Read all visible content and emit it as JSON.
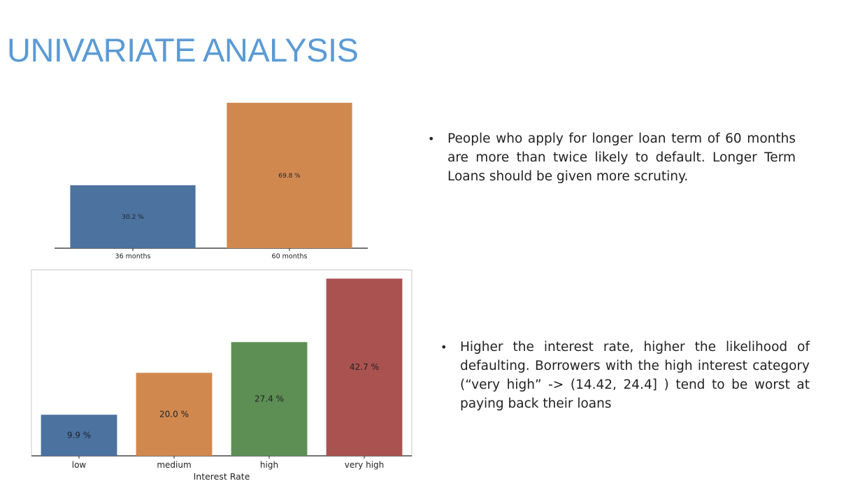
{
  "page_title": "UNIVARIATE ANALYSIS",
  "chart_data": [
    {
      "type": "bar",
      "categories": [
        "36 months",
        "60 months"
      ],
      "values": [
        30.2,
        69.8
      ],
      "data_labels": [
        "30.2 %",
        "69.8 %"
      ],
      "colors": [
        "#4c72a0",
        "#d1884f"
      ],
      "title": "",
      "xlabel": "",
      "ylabel": "",
      "ylim": [
        0,
        69.8
      ],
      "grid": false,
      "axes": "x-axis line only, no frame"
    },
    {
      "type": "bar",
      "categories": [
        "low",
        "medium",
        "high",
        "very high"
      ],
      "values": [
        9.9,
        20.0,
        27.4,
        42.7
      ],
      "data_labels": [
        "9.9 %",
        "20.0 %",
        "27.4 %",
        "42.7 %"
      ],
      "colors": [
        "#4c72a0",
        "#d1884f",
        "#5d8f55",
        "#aa5250"
      ],
      "title": "",
      "xlabel": "Interest Rate",
      "ylabel": "",
      "ylim": [
        0,
        44.8
      ],
      "grid": false,
      "axes": "full frame"
    }
  ],
  "bullets": [
    {
      "marker": "•",
      "text": "People who apply for longer loan term of 60 months are more than twice likely to default. Longer Term Loans should be given more scrutiny."
    },
    {
      "marker": "•",
      "text": "Higher the interest rate, higher the likelihood of defaulting. Borrowers with the high interest category (“very high” -> (14.42, 24.4] ) tend to be worst at paying back their loans"
    }
  ]
}
